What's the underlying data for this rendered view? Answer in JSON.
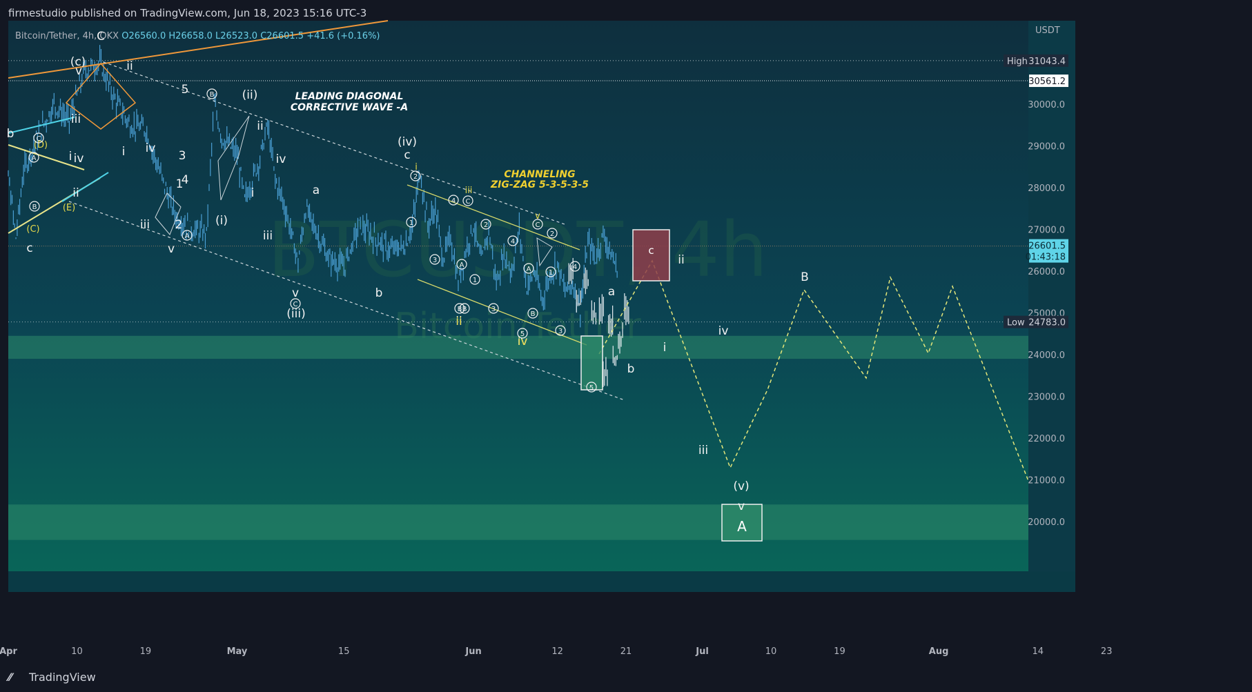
{
  "header": {
    "publish_text": "firmestudio published on TradingView.com, Jun 18, 2023 15:16 UTC-3"
  },
  "legend": {
    "symbol": "Bitcoin/Tether, 4h, OKX",
    "open": "O26560.0",
    "high": "H26658.0",
    "low": "L26523.0",
    "close": "C26601.5",
    "change": "+41.6 (+0.16%)"
  },
  "watermark": {
    "ticker": "BTCUSDT, 4h",
    "name": "Bitcoin/Tether"
  },
  "footer": {
    "logo_text": "TradingView"
  },
  "colors": {
    "background": "#0a3f4f",
    "candle": "#4a9fd4",
    "zone": "#2d8a6a",
    "orange_trend": "#f0983a",
    "yellow_channel": "#d6d86a",
    "cyan_line": "#4fd4e8",
    "price_badge": "#5fd4e8"
  },
  "chart_data": {
    "type": "candlestick",
    "currency": "USDT",
    "y_axis": {
      "ticks": [
        "31043.4",
        "30561.2",
        "30000.0",
        "29000.0",
        "28000.0",
        "27000.0",
        "26601.5",
        "26000.0",
        "25000.0",
        "24783.0",
        "24000.0",
        "23000.0",
        "22000.0",
        "21000.0",
        "20000.0"
      ],
      "range": [
        19100,
        32000
      ]
    },
    "x_axis": {
      "ticks": [
        "Apr",
        "10",
        "19",
        "May",
        "15",
        "Jun",
        "12",
        "21",
        "Jul",
        "10",
        "19",
        "Aug",
        "14",
        "23"
      ]
    },
    "price_labels": [
      {
        "label": "High",
        "value": "31043.4"
      },
      {
        "value": "30561.2"
      },
      {
        "value": "26601.5",
        "sub": "01:43:18"
      },
      {
        "label": "Low",
        "value": "24783.0"
      }
    ],
    "annotations": {
      "leading_diagonal": [
        "LEADING DIAGONAL",
        "CORRECTIVE WAVE -A"
      ],
      "channeling": [
        "CHANNELING",
        "ZIG-ZAG 5-3-5-3-5"
      ]
    },
    "wave_labels": [
      {
        "t": "(c)",
        "x": 2,
        "y": 31000
      },
      {
        "t": "v",
        "x": 2,
        "y": 30800
      },
      {
        "t": "C",
        "x": 3.5,
        "y": 31580
      },
      {
        "t": "ii",
        "x": 6.5,
        "y": 30950
      },
      {
        "t": "b",
        "x": -8,
        "y": 29300
      },
      {
        "t": "iii",
        "x": 1.5,
        "y": 29650
      },
      {
        "t": "i",
        "x": 1.1,
        "y": 28450
      },
      {
        "t": "iv",
        "x": 1.9,
        "y": 28350
      },
      {
        "t": "ii",
        "x": 1.5,
        "y": 27830
      },
      {
        "t": "i",
        "x": 5.6,
        "y": 28600
      },
      {
        "t": "iv",
        "x": 8.2,
        "y": 28850
      },
      {
        "t": "iii",
        "x": 7.7,
        "y": 26950
      },
      {
        "t": "v",
        "x": 10.8,
        "y": 26500
      },
      {
        "t": "c",
        "x": -5.2,
        "y": 26500
      },
      {
        "t": "5",
        "x": 11.5,
        "y": 30450
      },
      {
        "t": "3",
        "x": 11.3,
        "y": 28780
      },
      {
        "t": "1",
        "x": 11.0,
        "y": 28100
      },
      {
        "t": "4",
        "x": 11.5,
        "y": 27980
      },
      {
        "t": "2",
        "x": 11.0,
        "y": 26880
      },
      {
        "t": "(ii)",
        "x": 17.6,
        "y": 30300
      },
      {
        "t": "ii",
        "x": 18.4,
        "y": 29650
      },
      {
        "t": "iv",
        "x": 19.6,
        "y": 28700
      },
      {
        "t": "i",
        "x": 17.2,
        "y": 27800
      },
      {
        "t": "(i)",
        "x": 14.4,
        "y": 27080
      },
      {
        "t": "iii",
        "x": 18.8,
        "y": 26730
      },
      {
        "t": "a",
        "x": 23.8,
        "y": 27900
      },
      {
        "t": "b",
        "x": 30.1,
        "y": 25450
      },
      {
        "t": "v",
        "x": 22.2,
        "y": 25300
      },
      {
        "t": "(iii)",
        "x": 22.2,
        "y": 24930
      },
      {
        "t": "(iv)",
        "x": 33.2,
        "y": 29060
      },
      {
        "t": "c",
        "x": 33.2,
        "y": 28700
      },
      {
        "t": "ii",
        "x": 37.4,
        "y": 24670
      },
      {
        "t": "iv",
        "x": 44.4,
        "y": 24150
      },
      {
        "t": "b",
        "x": 50.5,
        "y": 23660
      },
      {
        "t": "a",
        "x": 52.3,
        "y": 25500
      },
      {
        "t": "ii",
        "x": 58.0,
        "y": 26600
      },
      {
        "t": "i",
        "x": 57.1,
        "y": 24130
      },
      {
        "t": "iv",
        "x": 62.7,
        "y": 24600
      },
      {
        "t": "iii",
        "x": 60.7,
        "y": 21920
      },
      {
        "t": "(v)",
        "x": 64.0,
        "y": 21170
      },
      {
        "t": "v",
        "x": 64.0,
        "y": 20330
      },
      {
        "t": "B",
        "x": 70.5,
        "y": 25900
      }
    ],
    "wave_labels_yellow": [
      {
        "t": "(C)",
        "x": -1.5,
        "y": 26330
      },
      {
        "t": "(D)",
        "x": 0,
        "y": 29000
      },
      {
        "t": "(E)",
        "x": 3,
        "y": 27510
      },
      {
        "t": "i",
        "x": 34.0,
        "y": 28450
      },
      {
        "t": "iii",
        "x": 38.7,
        "y": 27950
      },
      {
        "t": "v",
        "x": 45.2,
        "y": 27300
      },
      {
        "t": "c",
        "x": 0,
        "y": 0
      }
    ],
    "circled_labels": [
      {
        "t": "C",
        "x": 0.2,
        "y": 29250
      },
      {
        "t": "A",
        "x": 0,
        "y": 28800
      },
      {
        "t": "B",
        "x": 0,
        "y": 27670
      },
      {
        "t": "B",
        "x": 16.3,
        "y": 30420
      },
      {
        "t": "A",
        "x": 12.7,
        "y": 26600
      },
      {
        "t": "C",
        "x": 22.3,
        "y": 25140
      },
      {
        "t": "2",
        "x": 34.1,
        "y": 28270
      },
      {
        "t": "4",
        "x": 36.7,
        "y": 27720
      },
      {
        "t": "C",
        "x": 37.5,
        "y": 27720
      },
      {
        "t": "1",
        "x": 33.6,
        "y": 27200
      },
      {
        "t": "3",
        "x": 35.0,
        "y": 26300
      },
      {
        "t": "A",
        "x": 37.8,
        "y": 25900
      },
      {
        "t": "1",
        "x": 38.9,
        "y": 25300
      },
      {
        "t": "2",
        "x": 40.0,
        "y": 27160
      },
      {
        "t": "4",
        "x": 42.8,
        "y": 26730
      },
      {
        "t": "B",
        "x": 37.2,
        "y": 25060
      },
      {
        "t": "B",
        "x": 37.8,
        "y": 25060
      },
      {
        "t": "3",
        "x": 40.7,
        "y": 25060
      },
      {
        "t": "A",
        "x": 44.1,
        "y": 26070
      },
      {
        "t": "1",
        "x": 46.3,
        "y": 25980
      },
      {
        "t": "C",
        "x": 45.3,
        "y": 27180
      },
      {
        "t": "2",
        "x": 46.4,
        "y": 26970
      },
      {
        "t": "3",
        "x": 47.1,
        "y": 24610
      },
      {
        "t": "4",
        "x": 48.6,
        "y": 26120
      },
      {
        "t": "B",
        "x": 44.8,
        "y": 24870
      },
      {
        "t": "5",
        "x": 43.8,
        "y": 24380
      },
      {
        "t": "5",
        "x": 49.8,
        "y": 23240
      }
    ],
    "boxes": [
      {
        "label": "c",
        "x0": 53.4,
        "x1": 56.5,
        "y0": 25800,
        "y1": 27000,
        "color": "#8f3e4a"
      },
      {
        "label": "",
        "x0": 49.0,
        "x1": 50.8,
        "y0": 23200,
        "y1": 24450,
        "color": "#2d8a6a"
      },
      {
        "label": "A",
        "x0": 61.0,
        "x1": 64.4,
        "y0": 19570,
        "y1": 20440,
        "color": "#2d8a6a"
      }
    ]
  }
}
